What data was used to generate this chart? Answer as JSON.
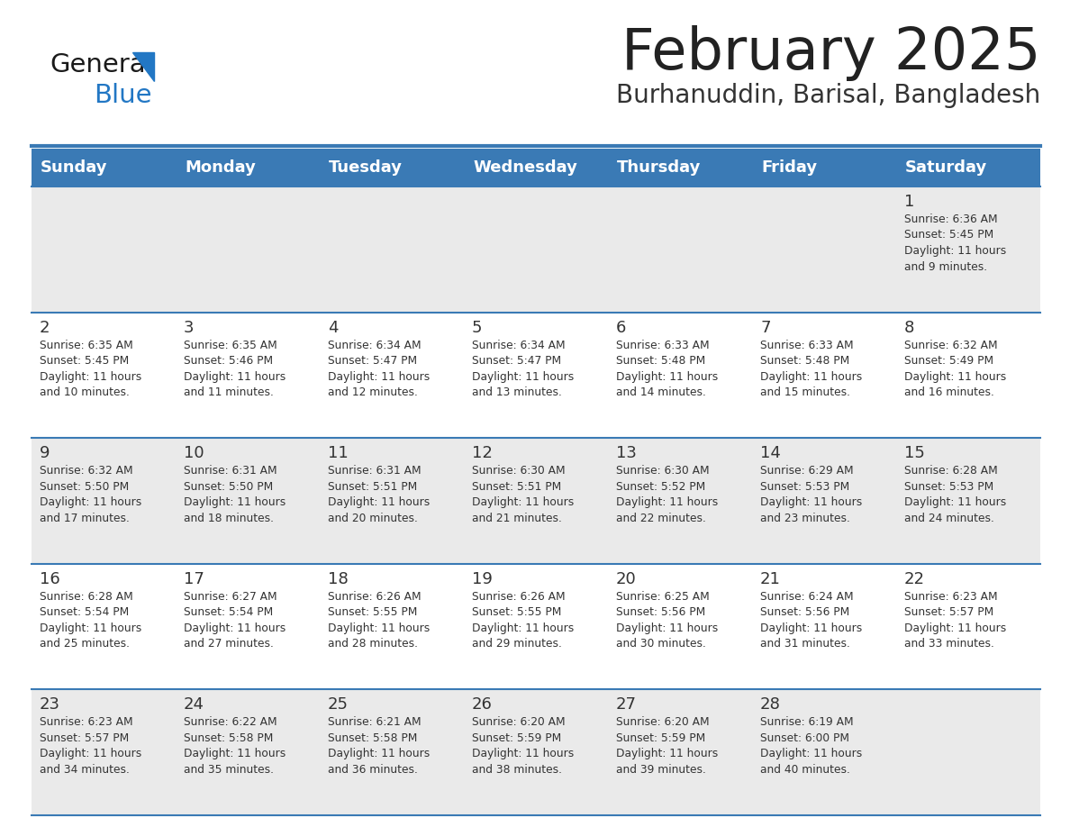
{
  "title": "February 2025",
  "subtitle": "Burhanuddin, Barisal, Bangladesh",
  "days_of_week": [
    "Sunday",
    "Monday",
    "Tuesday",
    "Wednesday",
    "Thursday",
    "Friday",
    "Saturday"
  ],
  "header_bg": "#3a7ab5",
  "header_text_color": "#ffffff",
  "cell_bg_even": "#eaeaea",
  "cell_bg_odd": "#ffffff",
  "separator_color": "#3a7ab5",
  "text_color": "#333333",
  "day_num_color": "#333333",
  "title_color": "#222222",
  "subtitle_color": "#333333",
  "logo_general_color": "#1a1a1a",
  "logo_blue_color": "#2277c4",
  "calendar_data": [
    {
      "day": 1,
      "col": 6,
      "row": 0,
      "sunrise": "6:36 AM",
      "sunset": "5:45 PM",
      "daylight": "11 hours and 9 minutes."
    },
    {
      "day": 2,
      "col": 0,
      "row": 1,
      "sunrise": "6:35 AM",
      "sunset": "5:45 PM",
      "daylight": "11 hours and 10 minutes."
    },
    {
      "day": 3,
      "col": 1,
      "row": 1,
      "sunrise": "6:35 AM",
      "sunset": "5:46 PM",
      "daylight": "11 hours and 11 minutes."
    },
    {
      "day": 4,
      "col": 2,
      "row": 1,
      "sunrise": "6:34 AM",
      "sunset": "5:47 PM",
      "daylight": "11 hours and 12 minutes."
    },
    {
      "day": 5,
      "col": 3,
      "row": 1,
      "sunrise": "6:34 AM",
      "sunset": "5:47 PM",
      "daylight": "11 hours and 13 minutes."
    },
    {
      "day": 6,
      "col": 4,
      "row": 1,
      "sunrise": "6:33 AM",
      "sunset": "5:48 PM",
      "daylight": "11 hours and 14 minutes."
    },
    {
      "day": 7,
      "col": 5,
      "row": 1,
      "sunrise": "6:33 AM",
      "sunset": "5:48 PM",
      "daylight": "11 hours and 15 minutes."
    },
    {
      "day": 8,
      "col": 6,
      "row": 1,
      "sunrise": "6:32 AM",
      "sunset": "5:49 PM",
      "daylight": "11 hours and 16 minutes."
    },
    {
      "day": 9,
      "col": 0,
      "row": 2,
      "sunrise": "6:32 AM",
      "sunset": "5:50 PM",
      "daylight": "11 hours and 17 minutes."
    },
    {
      "day": 10,
      "col": 1,
      "row": 2,
      "sunrise": "6:31 AM",
      "sunset": "5:50 PM",
      "daylight": "11 hours and 18 minutes."
    },
    {
      "day": 11,
      "col": 2,
      "row": 2,
      "sunrise": "6:31 AM",
      "sunset": "5:51 PM",
      "daylight": "11 hours and 20 minutes."
    },
    {
      "day": 12,
      "col": 3,
      "row": 2,
      "sunrise": "6:30 AM",
      "sunset": "5:51 PM",
      "daylight": "11 hours and 21 minutes."
    },
    {
      "day": 13,
      "col": 4,
      "row": 2,
      "sunrise": "6:30 AM",
      "sunset": "5:52 PM",
      "daylight": "11 hours and 22 minutes."
    },
    {
      "day": 14,
      "col": 5,
      "row": 2,
      "sunrise": "6:29 AM",
      "sunset": "5:53 PM",
      "daylight": "11 hours and 23 minutes."
    },
    {
      "day": 15,
      "col": 6,
      "row": 2,
      "sunrise": "6:28 AM",
      "sunset": "5:53 PM",
      "daylight": "11 hours and 24 minutes."
    },
    {
      "day": 16,
      "col": 0,
      "row": 3,
      "sunrise": "6:28 AM",
      "sunset": "5:54 PM",
      "daylight": "11 hours and 25 minutes."
    },
    {
      "day": 17,
      "col": 1,
      "row": 3,
      "sunrise": "6:27 AM",
      "sunset": "5:54 PM",
      "daylight": "11 hours and 27 minutes."
    },
    {
      "day": 18,
      "col": 2,
      "row": 3,
      "sunrise": "6:26 AM",
      "sunset": "5:55 PM",
      "daylight": "11 hours and 28 minutes."
    },
    {
      "day": 19,
      "col": 3,
      "row": 3,
      "sunrise": "6:26 AM",
      "sunset": "5:55 PM",
      "daylight": "11 hours and 29 minutes."
    },
    {
      "day": 20,
      "col": 4,
      "row": 3,
      "sunrise": "6:25 AM",
      "sunset": "5:56 PM",
      "daylight": "11 hours and 30 minutes."
    },
    {
      "day": 21,
      "col": 5,
      "row": 3,
      "sunrise": "6:24 AM",
      "sunset": "5:56 PM",
      "daylight": "11 hours and 31 minutes."
    },
    {
      "day": 22,
      "col": 6,
      "row": 3,
      "sunrise": "6:23 AM",
      "sunset": "5:57 PM",
      "daylight": "11 hours and 33 minutes."
    },
    {
      "day": 23,
      "col": 0,
      "row": 4,
      "sunrise": "6:23 AM",
      "sunset": "5:57 PM",
      "daylight": "11 hours and 34 minutes."
    },
    {
      "day": 24,
      "col": 1,
      "row": 4,
      "sunrise": "6:22 AM",
      "sunset": "5:58 PM",
      "daylight": "11 hours and 35 minutes."
    },
    {
      "day": 25,
      "col": 2,
      "row": 4,
      "sunrise": "6:21 AM",
      "sunset": "5:58 PM",
      "daylight": "11 hours and 36 minutes."
    },
    {
      "day": 26,
      "col": 3,
      "row": 4,
      "sunrise": "6:20 AM",
      "sunset": "5:59 PM",
      "daylight": "11 hours and 38 minutes."
    },
    {
      "day": 27,
      "col": 4,
      "row": 4,
      "sunrise": "6:20 AM",
      "sunset": "5:59 PM",
      "daylight": "11 hours and 39 minutes."
    },
    {
      "day": 28,
      "col": 5,
      "row": 4,
      "sunrise": "6:19 AM",
      "sunset": "6:00 PM",
      "daylight": "11 hours and 40 minutes."
    }
  ]
}
